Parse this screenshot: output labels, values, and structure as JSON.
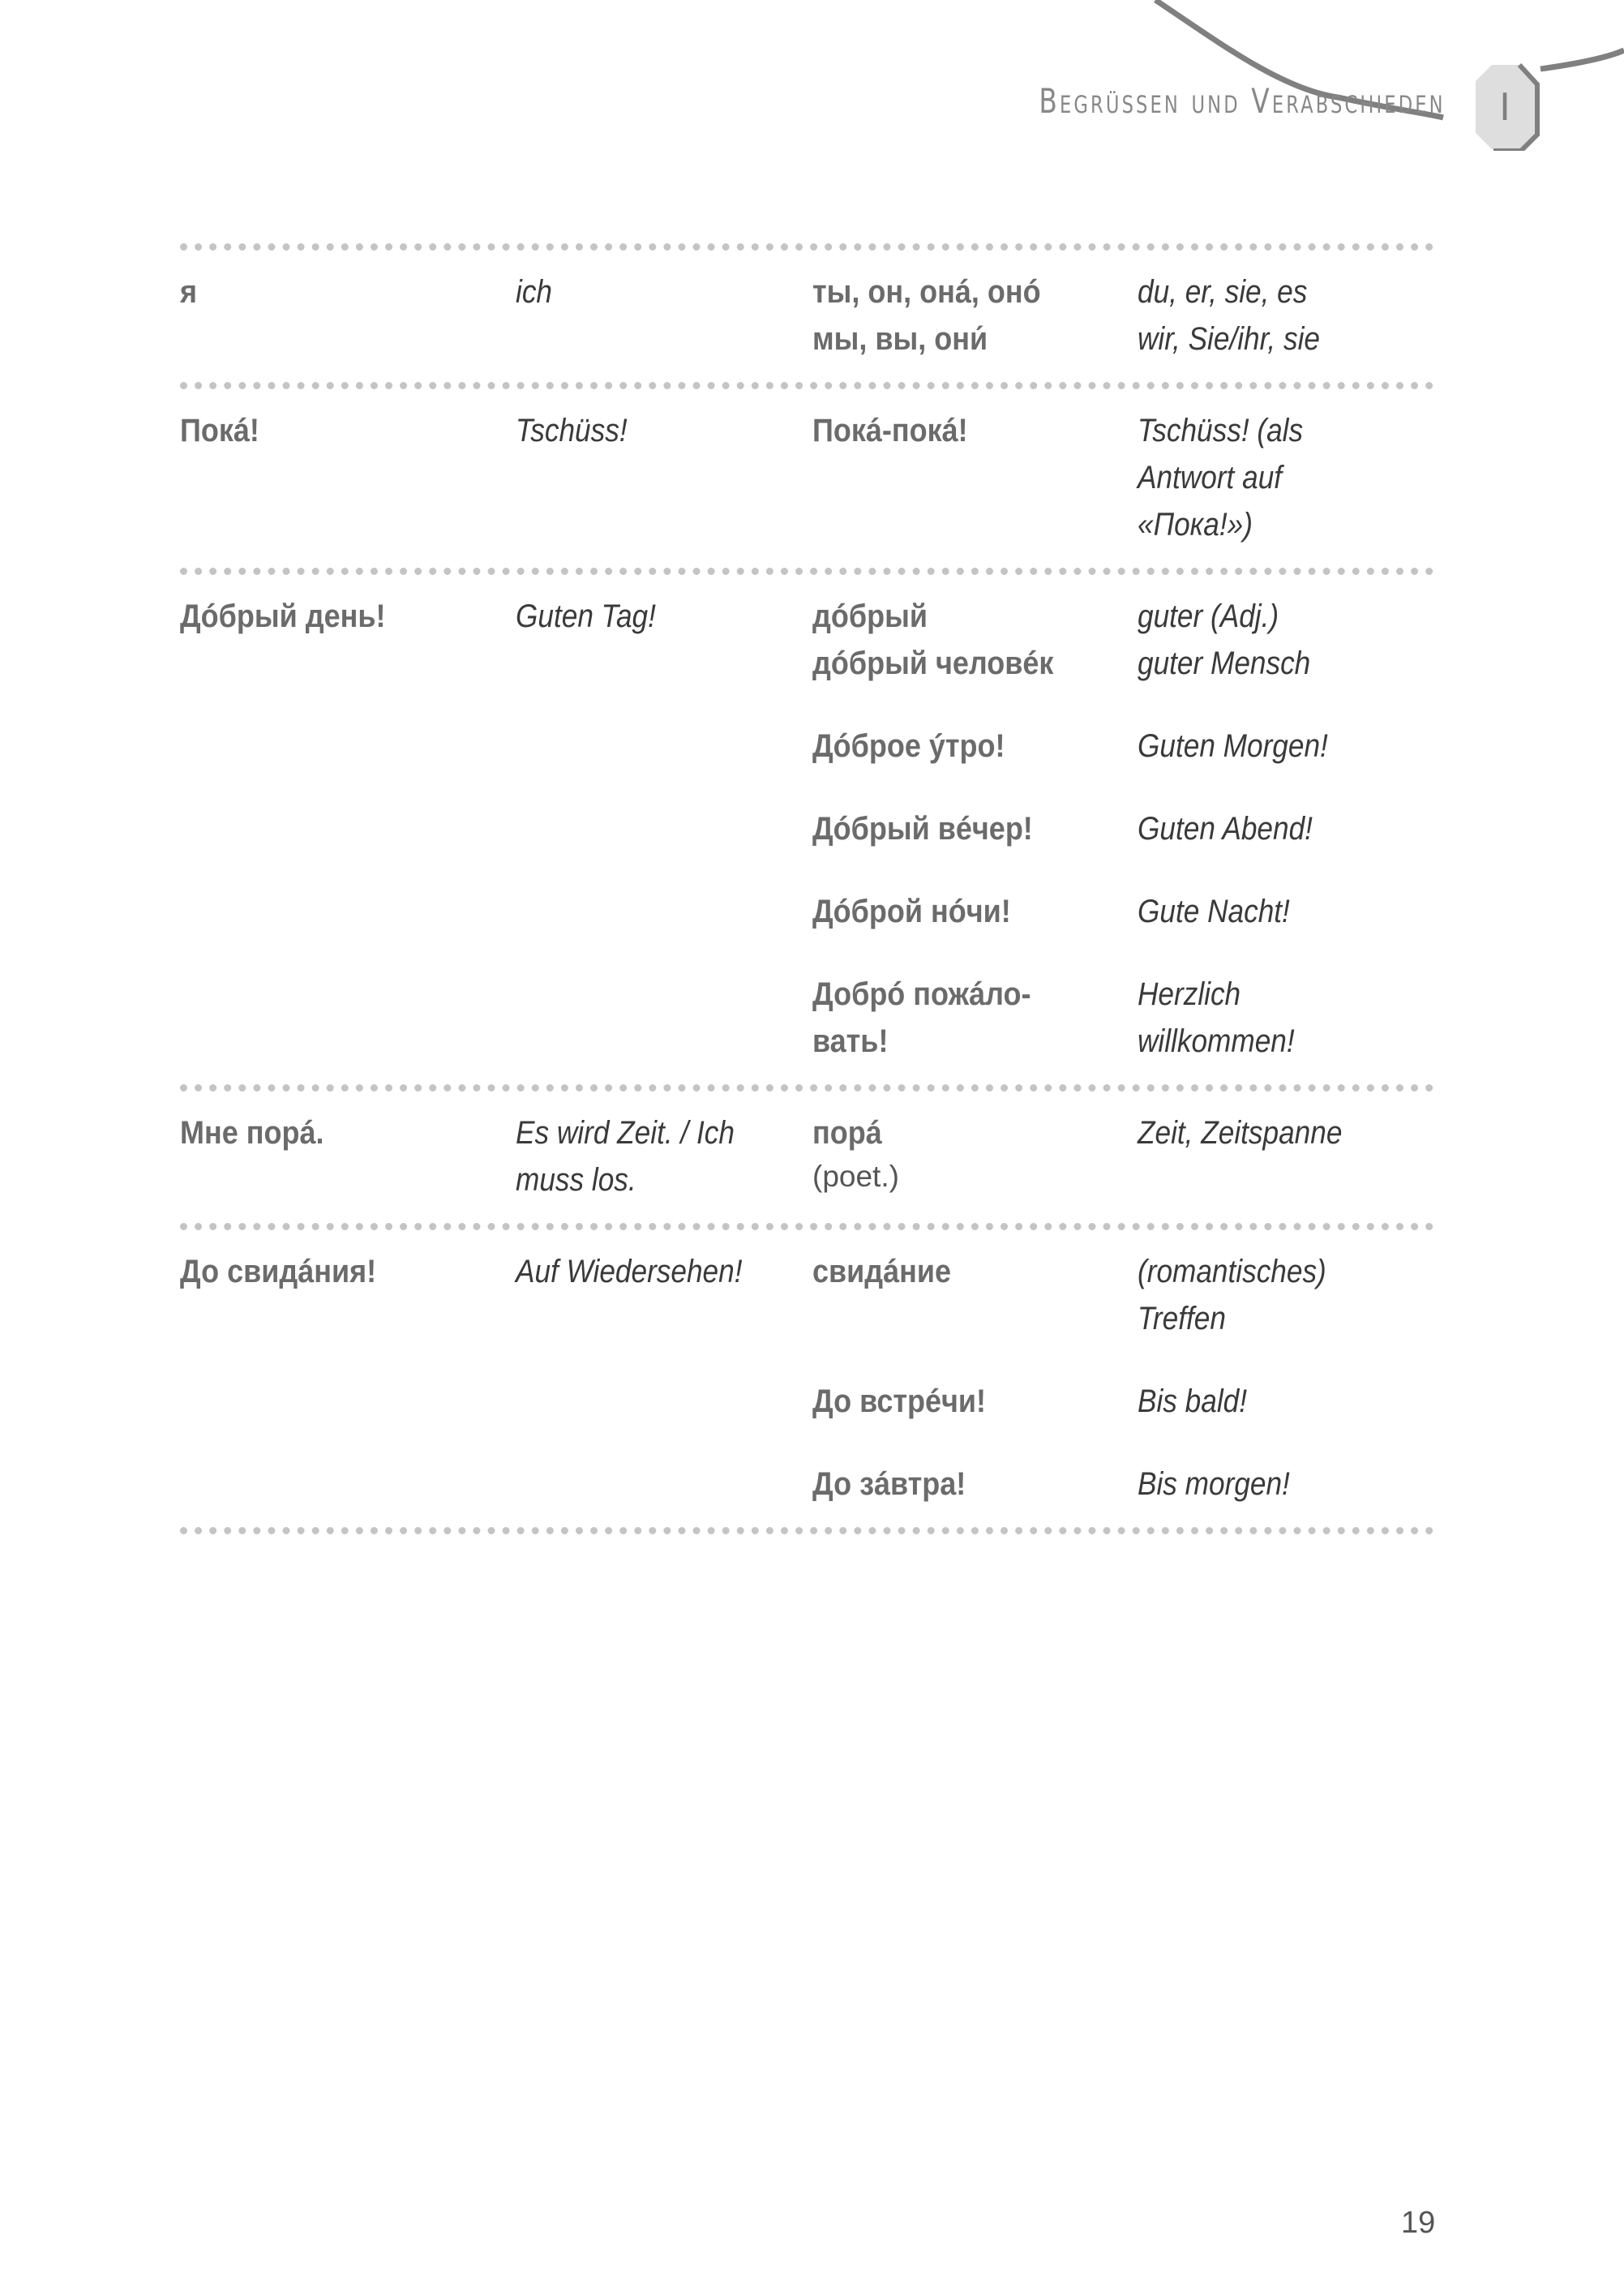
{
  "header": {
    "title": "Begrüssen und Verabschieden",
    "chapter": "I"
  },
  "groups": [
    {
      "ru": "я",
      "de": "ich",
      "subs": [
        {
          "ru": "ты, он, онá, онó\nмы, вы, они́",
          "de": "du, er, sie, es\nwir, Sie/ihr, sie"
        }
      ]
    },
    {
      "ru": "Покá!",
      "de": "Tschüss!",
      "subs": [
        {
          "ru": "Покá-покá!",
          "de": "Tschüss! (als\nAntwort auf\n«Пока!»)"
        }
      ]
    },
    {
      "ru": "Дóбрый день!",
      "de": "Guten Tag!",
      "subs": [
        {
          "ru": "дóбрый\nдóбрый человéк",
          "de": "guter (Adj.)\nguter Mensch"
        },
        {
          "ru": "Дóброе ýтро!",
          "de": "Guten Morgen!"
        },
        {
          "ru": "Дóбрый вéчер!",
          "de": "Guten Abend!"
        },
        {
          "ru": "Дóброй нóчи!",
          "de": "Gute Nacht!"
        },
        {
          "ru": "Добрó пожáло-\nвать!",
          "de": "Herzlich\nwillkommen!"
        }
      ]
    },
    {
      "ru": "Мне порá.",
      "de": "Es wird Zeit. / Ich\nmuss los.",
      "subs": [
        {
          "ru": "порá",
          "note": "(poet.)",
          "de": "Zeit, Zeitspanne"
        }
      ]
    },
    {
      "ru": "До свидáния!",
      "de": "Auf Wiedersehen!",
      "subs": [
        {
          "ru": "свидáние",
          "de": "(romantisches)\nTreffen"
        },
        {
          "ru": "До встрéчи!",
          "de": "Bis bald!"
        },
        {
          "ru": "До зáвтра!",
          "de": "Bis morgen!"
        }
      ]
    }
  ],
  "page_number": "19",
  "colors": {
    "russian": "#6b6b6b",
    "german": "#3a3a3a",
    "separator": "#c4c4c4"
  }
}
